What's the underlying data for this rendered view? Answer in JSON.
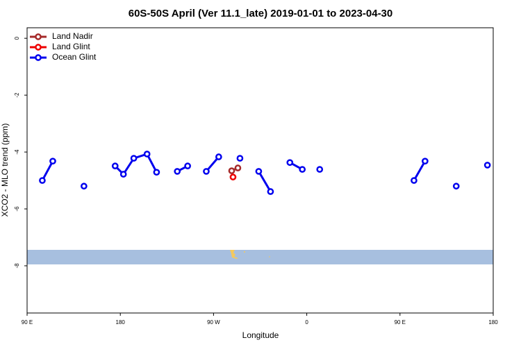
{
  "chart_data": {
    "type": "line",
    "title": "60S-50S April (Ver 11.1_late)   2019-01-01 to 2023-04-30",
    "xlabel": "Longitude",
    "ylabel": "XCO2 - MLO trend (ppm)",
    "xlim": [
      90,
      540
    ],
    "ylim": [
      -9.66,
      0.37
    ],
    "xticks": [
      {
        "value": 90,
        "label": "90 E"
      },
      {
        "value": 180,
        "label": "180"
      },
      {
        "value": 270,
        "label": "90 W"
      },
      {
        "value": 360,
        "label": "0"
      },
      {
        "value": 450,
        "label": "90 E"
      },
      {
        "value": 540,
        "label": "180"
      }
    ],
    "yticks": [
      0,
      -2,
      -4,
      -6,
      -8
    ],
    "legend": "top-left",
    "series": [
      {
        "name": "Land Nadir",
        "color": "#a52a2a",
        "x": [
          287.5,
          293.5
        ],
        "values": [
          -4.66,
          -4.56
        ]
      },
      {
        "name": "Land Glint",
        "color": "#ee0000",
        "x": [
          288.8
        ],
        "values": [
          -4.88
        ]
      },
      {
        "name": "Ocean Glint",
        "color": "#0000ee",
        "x": [
          104.7,
          114.8,
          null,
          144.9,
          null,
          175,
          183,
          193,
          205.8,
          215,
          null,
          235,
          245,
          null,
          263,
          275,
          null,
          295.5,
          null,
          313.6,
          325,
          null,
          343.7,
          355.7,
          null,
          372.5,
          null,
          463.5,
          474.2,
          null,
          504.3,
          null,
          534.4
        ],
        "values": [
          -5.0,
          -4.32,
          null,
          -5.2,
          null,
          -4.49,
          -4.78,
          -4.22,
          -4.07,
          -4.71,
          null,
          -4.68,
          -4.49,
          null,
          -4.68,
          -4.17,
          null,
          -4.22,
          null,
          -4.68,
          -5.39,
          null,
          -4.37,
          -4.61,
          null,
          -4.61,
          null,
          -5.0,
          -4.32,
          null,
          -5.2,
          null,
          -4.46
        ]
      }
    ]
  }
}
